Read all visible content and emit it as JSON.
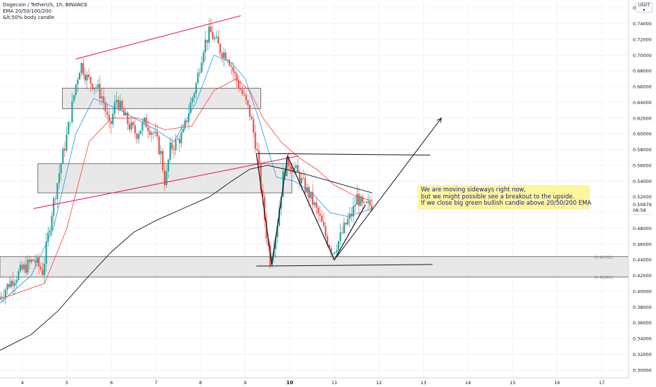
{
  "header": {
    "symbol_line": "Dogecoin / TetherUS, 1h, BINANCE",
    "indicator_1": "EMA 20/50/100/200",
    "indicator_2": "&lt;50% body candle"
  },
  "currency_button": {
    "label": "USDT",
    "sub": "▾"
  },
  "annotation": {
    "line1": "We are moving sideways right now,",
    "line2": "but we might possible see a breakout to the upside.",
    "line3": "If we close big green bullish candle above 20/50/200 EMA"
  },
  "current_price": {
    "value": "0.50979",
    "countdown": "08:58"
  },
  "colors": {
    "bull": "#26a69a",
    "bear": "#ef5350",
    "ema_fast": "#2196f3",
    "ema_slow": "#f44336",
    "ema_200": "#131722",
    "channel": "#e91e63",
    "zone_fill": "#e0e0e0",
    "callout": "#fff59d"
  },
  "chart_data": {
    "type": "candlestick",
    "title": "Dogecoin / TetherUS, 1h, BINANCE",
    "y_axis": {
      "range": [
        0.29,
        0.77
      ],
      "tick_labels": [
        "0.76000",
        "0.74000",
        "0.72000",
        "0.70000",
        "0.68000",
        "0.66000",
        "0.64000",
        "0.62000",
        "0.60000",
        "0.58000",
        "0.56000",
        "0.54000",
        "0.52000",
        "0.50000",
        "0.48000",
        "0.46000",
        "0.44000",
        "0.42000",
        "0.40000",
        "0.38000",
        "0.36000",
        "0.34000",
        "0.32000",
        "0.30000"
      ],
      "tick_values": [
        0.76,
        0.74,
        0.72,
        0.7,
        0.68,
        0.66,
        0.64,
        0.62,
        0.6,
        0.58,
        0.56,
        0.54,
        0.52,
        0.5,
        0.48,
        0.46,
        0.44,
        0.42,
        0.4,
        0.38,
        0.36,
        0.34,
        0.32,
        0.3
      ]
    },
    "x_axis": {
      "range": [
        3.5,
        17.6
      ],
      "tick_labels": [
        "4",
        "5",
        "6",
        "7",
        "8",
        "9",
        "10",
        "11",
        "12",
        "13",
        "14",
        "15",
        "16",
        "17"
      ],
      "tick_values": [
        4,
        5,
        6,
        7,
        8,
        9,
        10,
        11,
        12,
        13,
        14,
        15,
        16,
        17
      ]
    },
    "price_path": [
      [
        3.5,
        0.39
      ],
      [
        3.75,
        0.41
      ],
      [
        4.0,
        0.425
      ],
      [
        4.3,
        0.44
      ],
      [
        4.5,
        0.425
      ],
      [
        4.7,
        0.5
      ],
      [
        4.9,
        0.56
      ],
      [
        5.05,
        0.6
      ],
      [
        5.25,
        0.665
      ],
      [
        5.35,
        0.69
      ],
      [
        5.5,
        0.67
      ],
      [
        5.7,
        0.66
      ],
      [
        5.85,
        0.645
      ],
      [
        6.0,
        0.605
      ],
      [
        6.15,
        0.645
      ],
      [
        6.3,
        0.625
      ],
      [
        6.45,
        0.61
      ],
      [
        6.6,
        0.6
      ],
      [
        6.8,
        0.615
      ],
      [
        7.0,
        0.6
      ],
      [
        7.15,
        0.575
      ],
      [
        7.25,
        0.535
      ],
      [
        7.35,
        0.58
      ],
      [
        7.5,
        0.59
      ],
      [
        7.65,
        0.6
      ],
      [
        7.8,
        0.635
      ],
      [
        7.95,
        0.665
      ],
      [
        8.1,
        0.71
      ],
      [
        8.25,
        0.73
      ],
      [
        8.35,
        0.72
      ],
      [
        8.5,
        0.705
      ],
      [
        8.65,
        0.7
      ],
      [
        8.8,
        0.675
      ],
      [
        8.95,
        0.655
      ],
      [
        9.05,
        0.64
      ],
      [
        9.15,
        0.625
      ],
      [
        9.3,
        0.58
      ],
      [
        9.4,
        0.53
      ],
      [
        9.5,
        0.48
      ],
      [
        9.6,
        0.44
      ],
      [
        9.75,
        0.48
      ],
      [
        9.9,
        0.55
      ],
      [
        10.0,
        0.565
      ],
      [
        10.15,
        0.555
      ],
      [
        10.3,
        0.54
      ],
      [
        10.5,
        0.52
      ],
      [
        10.7,
        0.495
      ],
      [
        10.85,
        0.47
      ],
      [
        11.0,
        0.45
      ],
      [
        11.15,
        0.465
      ],
      [
        11.3,
        0.485
      ],
      [
        11.45,
        0.5
      ],
      [
        11.55,
        0.52
      ],
      [
        11.7,
        0.505
      ],
      [
        11.85,
        0.51
      ]
    ],
    "series": [
      {
        "name": "EMA 20",
        "values": [
          [
            3.5,
            0.385
          ],
          [
            4.2,
            0.42
          ],
          [
            4.7,
            0.48
          ],
          [
            5.2,
            0.6
          ],
          [
            5.6,
            0.645
          ],
          [
            6.2,
            0.63
          ],
          [
            7.0,
            0.605
          ],
          [
            7.4,
            0.59
          ],
          [
            7.9,
            0.64
          ],
          [
            8.3,
            0.7
          ],
          [
            8.7,
            0.69
          ],
          [
            9.0,
            0.67
          ],
          [
            9.3,
            0.62
          ],
          [
            9.7,
            0.545
          ],
          [
            10.1,
            0.54
          ],
          [
            10.5,
            0.525
          ],
          [
            10.9,
            0.5
          ],
          [
            11.3,
            0.495
          ],
          [
            11.85,
            0.505
          ]
        ]
      },
      {
        "name": "EMA 50",
        "values": [
          [
            3.5,
            0.39
          ],
          [
            4.5,
            0.41
          ],
          [
            5.0,
            0.48
          ],
          [
            5.5,
            0.59
          ],
          [
            6.0,
            0.62
          ],
          [
            6.6,
            0.62
          ],
          [
            7.2,
            0.605
          ],
          [
            7.8,
            0.61
          ],
          [
            8.3,
            0.655
          ],
          [
            8.8,
            0.67
          ],
          [
            9.1,
            0.655
          ],
          [
            9.4,
            0.62
          ],
          [
            9.8,
            0.59
          ],
          [
            10.2,
            0.57
          ],
          [
            10.6,
            0.555
          ],
          [
            11.0,
            0.535
          ],
          [
            11.5,
            0.52
          ],
          [
            11.85,
            0.515
          ]
        ]
      },
      {
        "name": "EMA 200",
        "values": [
          [
            3.5,
            0.325
          ],
          [
            4.2,
            0.345
          ],
          [
            4.8,
            0.375
          ],
          [
            5.5,
            0.42
          ],
          [
            6.0,
            0.45
          ],
          [
            6.5,
            0.475
          ],
          [
            7.0,
            0.49
          ],
          [
            7.6,
            0.505
          ],
          [
            8.2,
            0.52
          ],
          [
            8.7,
            0.54
          ],
          [
            9.1,
            0.555
          ],
          [
            9.5,
            0.56
          ],
          [
            9.9,
            0.555
          ],
          [
            10.4,
            0.548
          ],
          [
            10.9,
            0.54
          ],
          [
            11.4,
            0.532
          ],
          [
            11.85,
            0.525
          ]
        ]
      }
    ],
    "zones": [
      {
        "x": [
          4.9,
          9.35
        ],
        "y": [
          0.632,
          0.658
        ]
      },
      {
        "x": [
          4.35,
          10.05
        ],
        "y": [
          0.525,
          0.562
        ]
      },
      {
        "x": [
          3.5,
          17.6
        ],
        "y": [
          0.418,
          0.444
        ],
        "labels": [
          "(0.44391)",
          "(0.41866)"
        ]
      }
    ],
    "annotations": {
      "channel_lines": [
        {
          "from": [
            5.2,
            0.695
          ],
          "to": [
            8.9,
            0.75
          ]
        },
        {
          "from": [
            4.25,
            0.505
          ],
          "to": [
            10.2,
            0.572
          ]
        }
      ],
      "horizontal_lines": [
        {
          "from": [
            9.25,
            0.575
          ],
          "to": [
            13.15,
            0.573
          ]
        },
        {
          "from": [
            9.25,
            0.432
          ],
          "to": [
            13.2,
            0.434
          ]
        }
      ],
      "zigzag": [
        [
          9.25,
          0.575
        ],
        [
          9.6,
          0.434
        ],
        [
          9.95,
          0.572
        ],
        [
          10.5,
          0.503
        ],
        [
          11.0,
          0.44
        ],
        [
          11.7,
          0.51
        ]
      ],
      "arrow": {
        "from": [
          11.0,
          0.44
        ],
        "to": [
          13.4,
          0.62
        ]
      }
    }
  }
}
